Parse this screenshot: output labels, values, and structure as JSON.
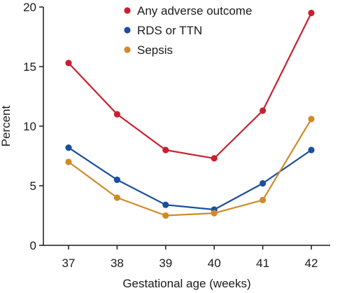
{
  "chart_data": {
    "type": "line",
    "xlabel": "Gestational age (weeks)",
    "ylabel": "Percent",
    "x": [
      37,
      38,
      39,
      40,
      41,
      42
    ],
    "xticks": [
      "37",
      "38",
      "39",
      "40",
      "41",
      "42"
    ],
    "yticks": [
      "0",
      "5",
      "10",
      "15",
      "20"
    ],
    "ylim": [
      0,
      20
    ],
    "grid": false,
    "legend_position": "top-right",
    "series": [
      {
        "name": "Any adverse outcome",
        "color": "#c8202f",
        "values": [
          15.3,
          11.0,
          8.0,
          7.3,
          11.3,
          19.5
        ]
      },
      {
        "name": "RDS or TTN",
        "color": "#1b4f9c",
        "values": [
          8.2,
          5.5,
          3.4,
          3.0,
          5.2,
          8.0
        ]
      },
      {
        "name": "Sepsis",
        "color": "#d08a2a",
        "values": [
          7.0,
          4.0,
          2.5,
          2.7,
          3.8,
          10.6
        ]
      }
    ]
  }
}
